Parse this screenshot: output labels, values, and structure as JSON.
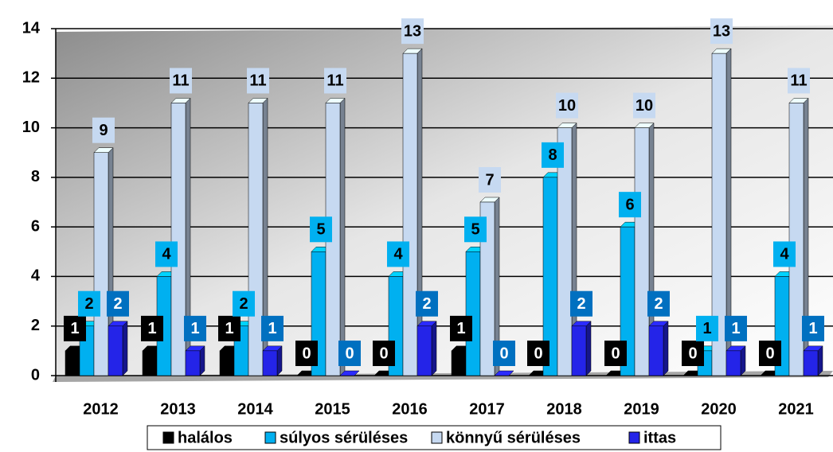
{
  "chart_data": {
    "type": "bar",
    "categories": [
      "2012",
      "2013",
      "2014",
      "2015",
      "2016",
      "2017",
      "2018",
      "2019",
      "2020",
      "2021"
    ],
    "series": [
      {
        "name": "halálos",
        "color": "#000000",
        "values": [
          1,
          1,
          1,
          0,
          0,
          1,
          0,
          0,
          0,
          0
        ]
      },
      {
        "name": "súlyos sérüléses",
        "color": "#00b0f0",
        "values": [
          2,
          4,
          2,
          5,
          4,
          5,
          8,
          6,
          1,
          4
        ]
      },
      {
        "name": "könnyű sérüléses",
        "color": "#c6d9f1",
        "values": [
          9,
          11,
          11,
          11,
          13,
          7,
          10,
          10,
          13,
          11
        ]
      },
      {
        "name": "ittas",
        "color": "#2424e8",
        "values": [
          2,
          1,
          1,
          0,
          2,
          0,
          2,
          2,
          1,
          1
        ]
      }
    ],
    "ylim": [
      0,
      14
    ],
    "yticks": [
      0,
      2,
      4,
      6,
      8,
      10,
      12,
      14
    ],
    "grid": true,
    "legend": "bottom"
  }
}
